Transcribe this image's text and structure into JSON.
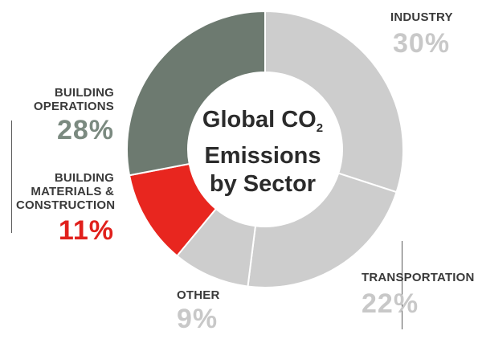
{
  "chart_data": {
    "type": "pie",
    "title": "Global CO2 Emissions by Sector",
    "title_lines": [
      "Global CO",
      "Emissions",
      "by Sector"
    ],
    "title_subscript": "2",
    "categories": [
      "Industry",
      "Transportation",
      "Other",
      "Building Materials & Construction",
      "Building Operations"
    ],
    "values": [
      30,
      22,
      9,
      11,
      28
    ],
    "unit": "%",
    "labels": [
      {
        "lines": [
          "INDUSTRY"
        ],
        "value": "30%",
        "color": "#c8c8c8"
      },
      {
        "lines": [
          "TRANSPORTATION"
        ],
        "value": "22%",
        "color": "#c8c8c8"
      },
      {
        "lines": [
          "OTHER"
        ],
        "value": "9%",
        "color": "#c8c8c8"
      },
      {
        "lines": [
          "BUILDING",
          "MATERIALS &",
          "CONSTRUCTION"
        ],
        "value": "11%",
        "color": "#e0201c"
      },
      {
        "lines": [
          "BUILDING",
          "OPERATIONS"
        ],
        "value": "28%",
        "color": "#7b8a80"
      }
    ],
    "colors": {
      "industry": "#cdcdcd",
      "transportation": "#cdcdcd",
      "other": "#cdcdcd",
      "building_materials": "#e8261f",
      "building_operations": "#6d7a70",
      "separator": "#ffffff"
    }
  }
}
